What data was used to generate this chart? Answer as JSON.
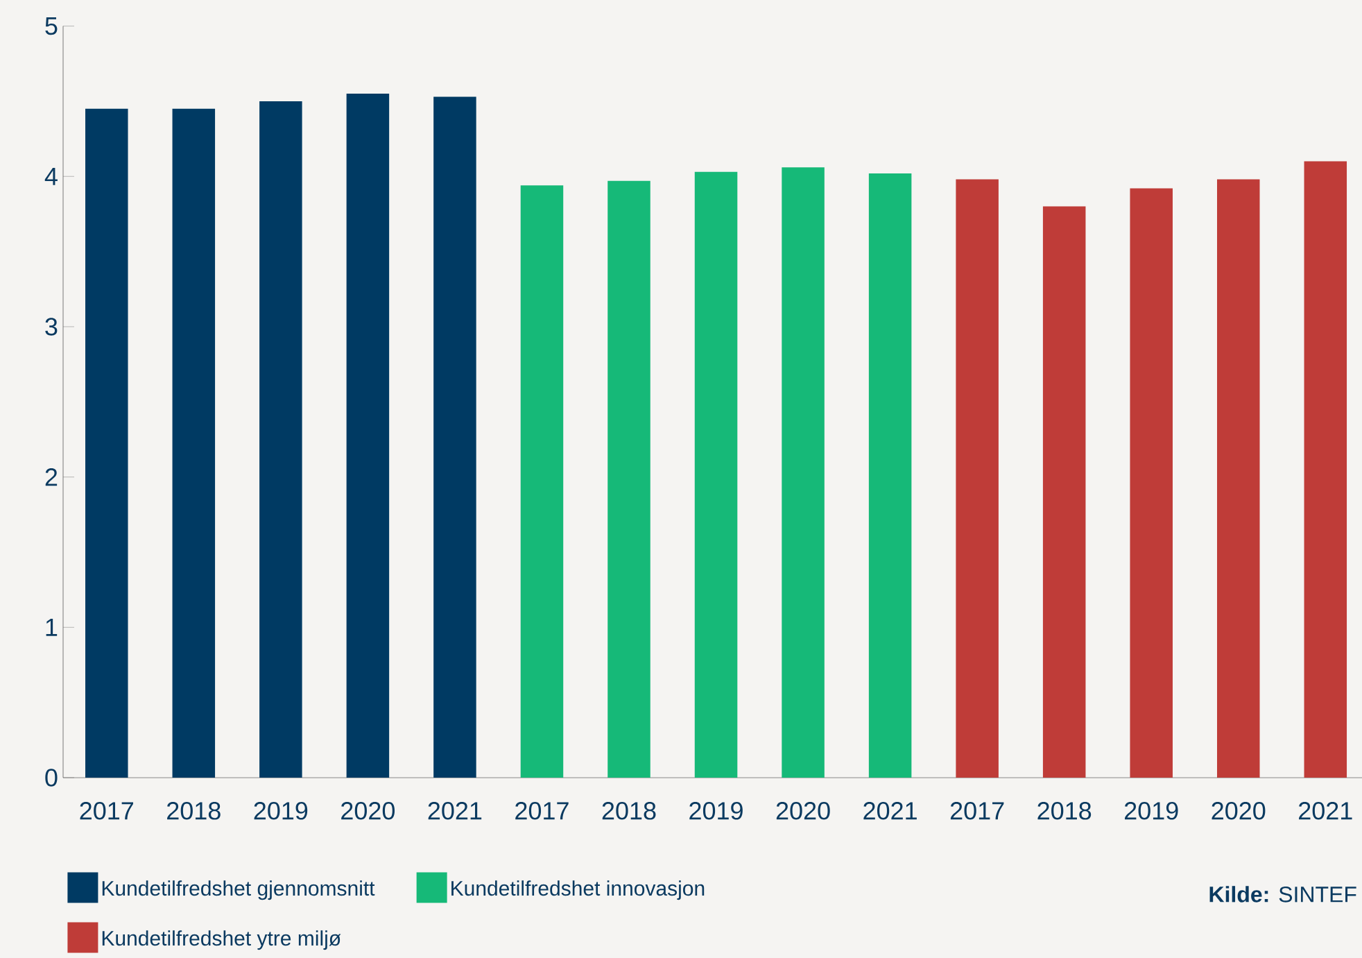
{
  "chart_data": {
    "type": "bar",
    "categories": [
      "2017",
      "2018",
      "2019",
      "2020",
      "2021",
      "2017",
      "2018",
      "2019",
      "2020",
      "2021",
      "2017",
      "2018",
      "2019",
      "2020",
      "2021"
    ],
    "series": [
      {
        "name": "Kundetilfredshet gjennomsnitt",
        "color": "#003a63",
        "values": [
          4.45,
          4.45,
          4.5,
          4.55,
          4.53,
          null,
          null,
          null,
          null,
          null,
          null,
          null,
          null,
          null,
          null
        ]
      },
      {
        "name": "Kundetilfredshet innovasjon",
        "color": "#16b978",
        "values": [
          null,
          null,
          null,
          null,
          null,
          3.94,
          3.97,
          4.03,
          4.06,
          4.02,
          null,
          null,
          null,
          null,
          null
        ]
      },
      {
        "name": "Kundetilfredshet ytre miljø",
        "color": "#bf3c38",
        "values": [
          null,
          null,
          null,
          null,
          null,
          null,
          null,
          null,
          null,
          null,
          3.98,
          3.8,
          3.92,
          3.98,
          4.1
        ]
      }
    ],
    "ylim": [
      0,
      5
    ],
    "yticks": [
      0,
      1,
      2,
      3,
      4,
      5
    ],
    "legend": "bottom",
    "annotations": [
      "**Kilde:** SINTEF"
    ]
  }
}
